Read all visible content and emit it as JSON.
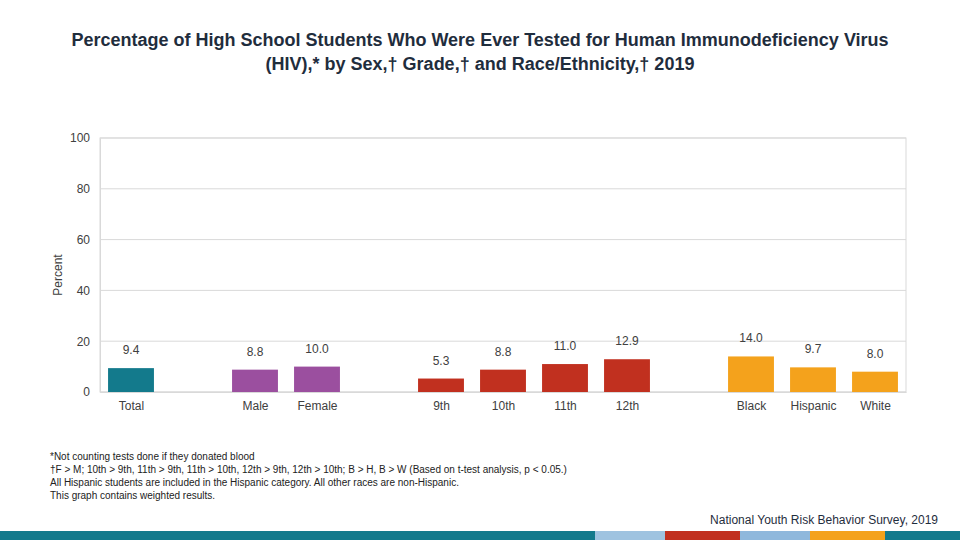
{
  "chart_data": {
    "type": "bar",
    "title": "Percentage of High School Students Who Were Ever Tested for Human Immunodeficiency Virus (HIV),* by Sex,† Grade,† and Race/Ethnicity,† 2019",
    "ylabel": "Percent",
    "categories": [
      "Total",
      "Male",
      "Female",
      "9th",
      "10th",
      "11th",
      "12th",
      "Black",
      "Hispanic",
      "White"
    ],
    "values": [
      9.4,
      8.8,
      10.0,
      5.3,
      8.8,
      11.0,
      12.9,
      14.0,
      9.7,
      8.0
    ],
    "value_labels": [
      "9.4",
      "8.8",
      "10.0",
      "5.3",
      "8.8",
      "11.0",
      "12.9",
      "14.0",
      "9.7",
      "8.0"
    ],
    "colors": [
      "#137a8c",
      "#9b4f9f",
      "#9b4f9f",
      "#c1301f",
      "#c1301f",
      "#c1301f",
      "#c1301f",
      "#f4a21c",
      "#f4a21c",
      "#f4a21c"
    ],
    "data_labels": true,
    "ylim": [
      0,
      100
    ],
    "yticks": [
      0,
      20,
      40,
      60,
      80,
      100
    ],
    "grid": true,
    "annotations": [
      "*Not counting tests done if they donated blood",
      "†F > M; 10th > 9th, 11th > 9th, 11th > 10th, 12th > 9th, 12th > 10th; B > H, B > W (Based on t-test analysis, p < 0.05.)",
      "All Hispanic students are included in the Hispanic category.  All other races are non-Hispanic.",
      "This graph contains weighted results."
    ],
    "source": "National Youth Risk Behavior Survey, 2019"
  }
}
